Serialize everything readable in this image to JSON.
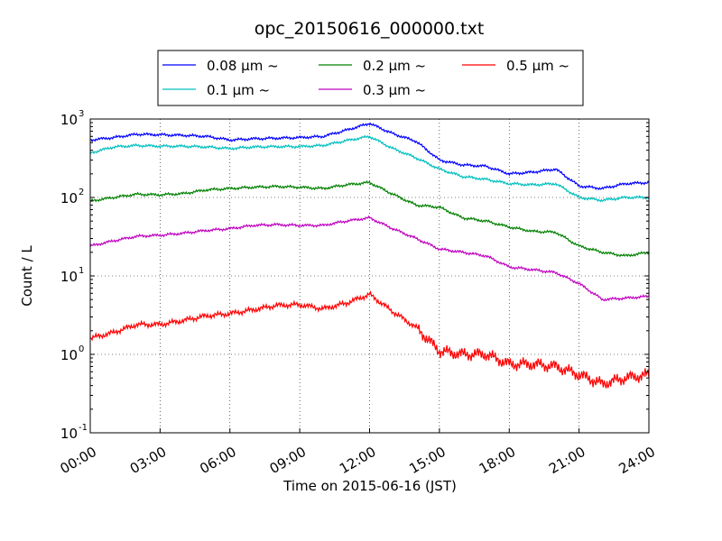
{
  "chart_data": {
    "type": "line",
    "title": "opc_20150616_000000.txt",
    "xlabel": "Time on 2015-06-16 (JST)",
    "ylabel": "Count / L",
    "xlim": [
      "00:00",
      "24:00"
    ],
    "ylim": [
      0.1,
      1000
    ],
    "yscale": "log",
    "grid": true,
    "legend_position": "top",
    "x_ticks": [
      "00:00",
      "03:00",
      "06:00",
      "09:00",
      "12:00",
      "15:00",
      "18:00",
      "21:00",
      "24:00"
    ],
    "y_ticks": [
      {
        "base": "10",
        "exp": "-1",
        "value": 0.1
      },
      {
        "base": "10",
        "exp": "0",
        "value": 1
      },
      {
        "base": "10",
        "exp": "1",
        "value": 10
      },
      {
        "base": "10",
        "exp": "2",
        "value": 100
      },
      {
        "base": "10",
        "exp": "3",
        "value": 1000
      }
    ],
    "x_hours": [
      0,
      1,
      2,
      3,
      4,
      5,
      6,
      7,
      8,
      9,
      10,
      11,
      12,
      13,
      14,
      15,
      16,
      17,
      18,
      19,
      20,
      21,
      22,
      23,
      24
    ],
    "series": [
      {
        "name": "0.08 μm ~",
        "color": "#0000ff",
        "values": [
          540,
          580,
          640,
          630,
          620,
          600,
          540,
          560,
          570,
          580,
          600,
          720,
          880,
          650,
          520,
          300,
          260,
          250,
          200,
          210,
          230,
          140,
          130,
          150,
          155
        ]
      },
      {
        "name": "0.1 μm ~",
        "color": "#00bfbf",
        "values": [
          370,
          440,
          460,
          450,
          450,
          440,
          420,
          440,
          445,
          445,
          460,
          530,
          600,
          420,
          320,
          230,
          185,
          170,
          150,
          145,
          150,
          100,
          92,
          100,
          100
        ]
      },
      {
        "name": "0.2 μm ~",
        "color": "#008000",
        "values": [
          90,
          100,
          110,
          108,
          112,
          125,
          130,
          135,
          138,
          135,
          130,
          145,
          155,
          110,
          80,
          75,
          55,
          50,
          42,
          37,
          36,
          24,
          20,
          18,
          20
        ]
      },
      {
        "name": "0.3 μm ~",
        "color": "#bf00bf",
        "values": [
          24,
          28,
          32,
          33,
          35,
          38,
          40,
          44,
          45,
          44,
          44,
          50,
          55,
          40,
          30,
          22,
          20,
          18,
          13,
          12,
          11,
          8,
          5,
          5.2,
          5.5
        ]
      },
      {
        "name": "0.5 μm ~",
        "color": "#ff0000",
        "values": [
          1.6,
          1.9,
          2.4,
          2.4,
          2.7,
          3.1,
          3.3,
          3.7,
          4.2,
          4.3,
          3.8,
          4.5,
          5.8,
          3.5,
          2.2,
          1.1,
          1.0,
          1.0,
          0.75,
          0.75,
          0.7,
          0.55,
          0.42,
          0.5,
          0.55
        ]
      }
    ]
  }
}
